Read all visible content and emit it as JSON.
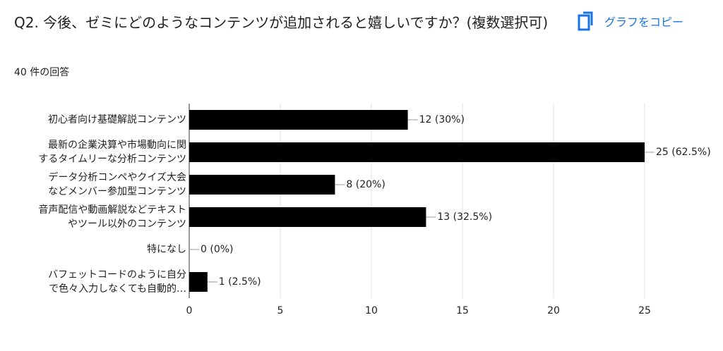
{
  "header": {
    "copy_button": "グラフをコピー"
  },
  "chart_data": {
    "type": "barh",
    "title": "Q2. 今後、ゼミにどのようなコンテンツが追加されると嬉しいですか？(複数選択可)",
    "subtitle": "40 件の回答",
    "categories": [
      [
        "初心者向け基礎解説コンテンツ"
      ],
      [
        "最新の企業決算や市場動向に関",
        "するタイムリーな分析コンテンツ"
      ],
      [
        "データ分析コンペやクイズ大会",
        "などメンバー参加型コンテンツ"
      ],
      [
        "音声配信や動画解説などテキスト",
        "やツール以外のコンテンツ"
      ],
      [
        "特になし"
      ],
      [
        "バフェットコードのように自分",
        "で色々入力しなくても自動的…"
      ]
    ],
    "values": [
      12,
      25,
      8,
      13,
      0,
      1
    ],
    "value_labels": [
      "12 (30%)",
      "25 (62.5%)",
      "8 (20%)",
      "13 (32.5%)",
      "0 (0%)",
      "1 (2.5%)"
    ],
    "color": "#000000",
    "xlim": [
      0,
      25
    ],
    "xticks": [
      0,
      5,
      10,
      15,
      20,
      25
    ],
    "grid": true
  }
}
